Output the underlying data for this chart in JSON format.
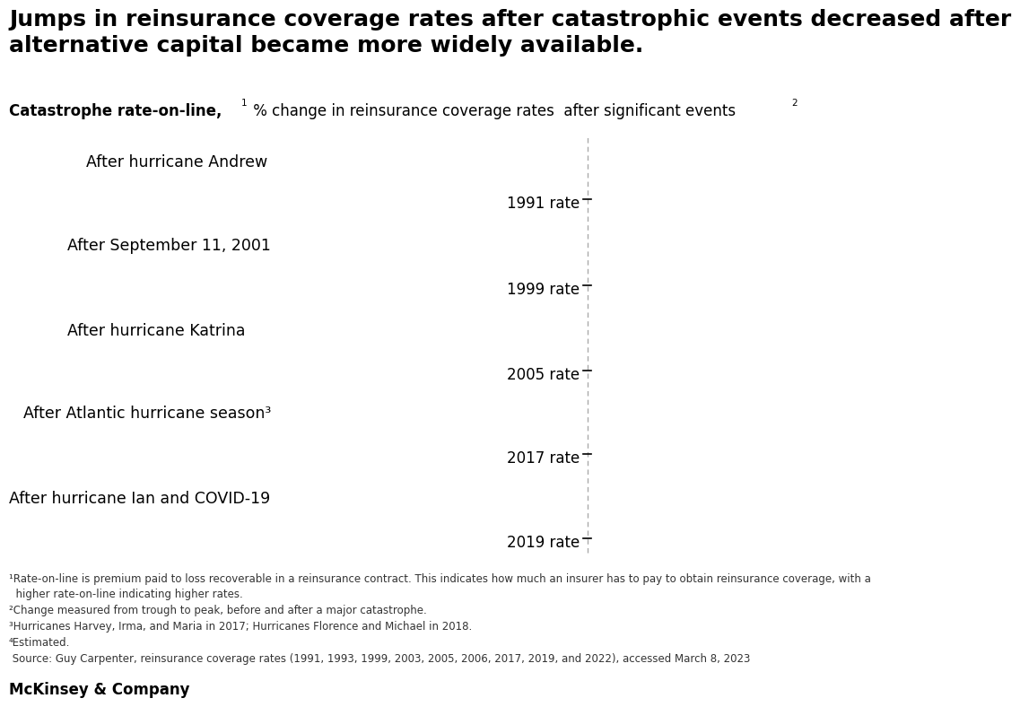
{
  "title": "Jumps in reinsurance coverage rates after catastrophic events decreased after\nalternative capital became more widely available.",
  "subtitle_bold": "Catastrophe rate-on-line,",
  "subtitle_sup1": "1",
  "subtitle_rest": " % change in reinsurance coverage rates  after significant events",
  "subtitle_sup2": "2",
  "events": [
    {
      "label": "After hurricane Andrew",
      "rate_label": "1991 rate",
      "indent": 0.08
    },
    {
      "label": "After September 11, 2001",
      "rate_label": "1999 rate",
      "indent": 0.06
    },
    {
      "label": "After hurricane Katrina",
      "rate_label": "2005 rate",
      "indent": 0.06
    },
    {
      "label": "After Atlantic hurricane season³",
      "rate_label": "2017 rate",
      "indent": 0.015
    },
    {
      "label": "After hurricane Ian and COVID-19",
      "rate_label": "2019 rate",
      "indent": 0.0
    }
  ],
  "dashed_line_x": 0.615,
  "footnote_lines": [
    "¹Rate-on-line is premium paid to loss recoverable in a reinsurance contract. This indicates how much an insurer has to pay to obtain reinsurance coverage, with a",
    "  higher rate-on-line indicating higher rates.",
    "²Change measured from trough to peak, before and after a major catastrophe.",
    "³Hurricanes Harvey, Irma, and Maria in 2017; Hurricanes Florence and Michael in 2018.",
    "⁴Estimated.",
    " Source: Guy Carpenter, reinsurance coverage rates (1991, 1993, 1999, 2003, 2005, 2006, 2017, 2019, and 2022), accessed March 8, 2023"
  ],
  "brand": "McKinsey & Company",
  "background_color": "#ffffff",
  "text_color": "#000000",
  "dashed_line_color": "#aaaaaa",
  "event_label_fontsize": 12.5,
  "rate_label_fontsize": 12,
  "subtitle_fontsize": 12,
  "title_fontsize": 18,
  "footnote_fontsize": 8.5,
  "brand_fontsize": 12
}
